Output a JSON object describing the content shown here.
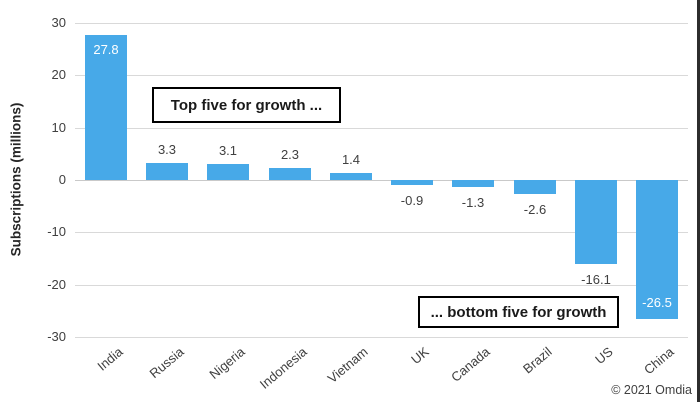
{
  "chart_data": {
    "type": "bar",
    "title": "",
    "categories": [
      "India",
      "Russia",
      "Nigeria",
      "Indonesia",
      "Vietnam",
      "UK",
      "Canada",
      "Brazil",
      "US",
      "China"
    ],
    "values": [
      27.8,
      3.3,
      3.1,
      2.3,
      1.4,
      -0.9,
      -1.3,
      -2.6,
      -16.1,
      -26.5
    ],
    "value_labels": [
      "27.8",
      "3.3",
      "3.1",
      "2.3",
      "1.4",
      "-0.9",
      "-1.3",
      "-2.6",
      "-16.1",
      "-26.5"
    ],
    "xlabel": "",
    "ylabel": "Subscriptions (millions)",
    "ylim": [
      -30,
      30
    ],
    "yticks": [
      30,
      20,
      10,
      0,
      -10,
      -20,
      -30
    ],
    "grid": true,
    "legend": false,
    "annotations": [
      {
        "text": "Top five for growth ...",
        "position": "above positive bars, left of center"
      },
      {
        "text": "... bottom five for growth",
        "position": "below negative bars, right of center"
      }
    ]
  },
  "annotations": {
    "top_box_label": "Top five for growth ...",
    "bottom_box_label": "... bottom five for growth"
  },
  "footer": {
    "credit": "© 2021 Omdia"
  },
  "colors": {
    "bar": "#47A9E8",
    "gridline": "#D9D9D9",
    "zero_line": "#C9C9C9",
    "text": "#404040",
    "inside_label_text": "#FFFFFF",
    "box_border": "#000000",
    "background": "#FFFFFF"
  }
}
